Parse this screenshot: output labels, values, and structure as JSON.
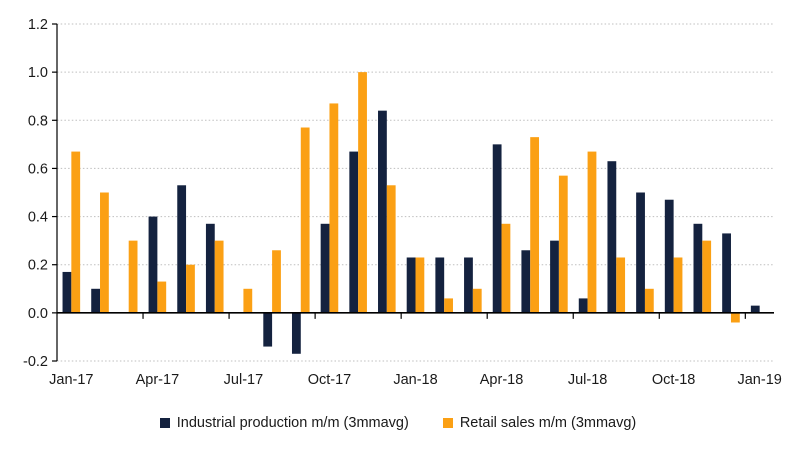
{
  "chart_data": {
    "type": "bar",
    "title": "",
    "xlabel": "",
    "ylabel": "",
    "categories": [
      "Jan-17",
      "Feb-17",
      "Mar-17",
      "Apr-17",
      "May-17",
      "Jun-17",
      "Jul-17",
      "Aug-17",
      "Sep-17",
      "Oct-17",
      "Nov-17",
      "Dec-17",
      "Jan-18",
      "Feb-18",
      "Mar-18",
      "Apr-18",
      "May-18",
      "Jun-18",
      "Jul-18",
      "Aug-18",
      "Sep-18",
      "Oct-18",
      "Nov-18",
      "Dec-18",
      "Jan-19"
    ],
    "series": [
      {
        "name": "Industrial production m/m (3mmavg)",
        "color": "#14223F",
        "values": [
          0.17,
          0.1,
          0.0,
          0.4,
          0.53,
          0.37,
          0.0,
          -0.14,
          -0.17,
          0.37,
          0.67,
          0.84,
          0.23,
          0.23,
          0.23,
          0.7,
          0.26,
          0.3,
          0.06,
          0.63,
          0.5,
          0.47,
          0.37,
          0.33,
          0.03
        ]
      },
      {
        "name": "Retail sales m/m (3mmavg)",
        "color": "#FBA014",
        "values": [
          0.67,
          0.5,
          0.3,
          0.13,
          0.2,
          0.3,
          0.1,
          0.26,
          0.77,
          0.87,
          1.0,
          0.53,
          0.23,
          0.06,
          0.1,
          0.37,
          0.73,
          0.57,
          0.67,
          0.23,
          0.1,
          0.23,
          0.3,
          -0.04,
          0.0
        ]
      }
    ],
    "ylim": [
      -0.2,
      1.2
    ],
    "ytick_step": 0.2,
    "ytick_labels": [
      "-0.2",
      "0.0",
      "0.2",
      "0.4",
      "0.6",
      "0.8",
      "1.0",
      "1.2"
    ],
    "xtick_labels": [
      "Jan-17",
      "Apr-17",
      "Jul-17",
      "Oct-17",
      "Jan-18",
      "Apr-18",
      "Jul-18",
      "Oct-18",
      "Jan-19"
    ],
    "xtick_label_every_n_categories": 3,
    "grid": "horizontal-dotted",
    "gridline_color": "#BFBFBF",
    "axis_color": "#000000",
    "tick_label_color": "#1a1a1a",
    "legend_position": "bottom"
  },
  "legend": {
    "items": [
      {
        "label": "Industrial production m/m (3mmavg)",
        "color": "#14223F"
      },
      {
        "label": "Retail sales m/m (3mmavg)",
        "color": "#FBA014"
      }
    ]
  }
}
